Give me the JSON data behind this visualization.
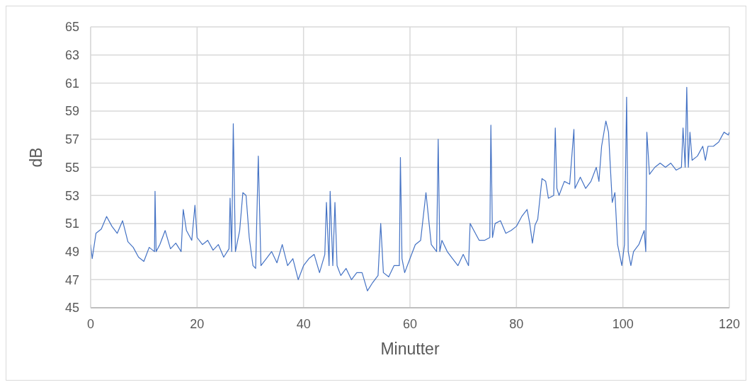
{
  "chart_data": {
    "type": "line",
    "xlabel": "Minutter",
    "ylabel": "dB",
    "x": [
      0,
      0.3,
      1,
      2,
      3,
      4,
      5,
      6,
      7,
      8,
      9,
      10,
      11,
      12,
      12.1,
      12.3,
      13,
      14,
      15,
      16,
      17,
      17.4,
      18,
      19,
      19.6,
      20,
      21,
      22,
      23,
      24,
      25,
      26,
      26.2,
      26.5,
      26.8,
      27.2,
      28,
      28.6,
      29.2,
      29.8,
      30.5,
      31,
      31.5,
      32,
      33,
      34,
      35,
      36,
      37,
      38,
      39,
      40,
      41,
      42,
      43,
      44,
      44.3,
      44.8,
      45,
      45.5,
      45.9,
      46.3,
      47,
      48,
      49,
      50,
      51,
      52,
      53,
      54,
      54.5,
      55,
      56,
      57,
      58,
      58.2,
      58.5,
      59,
      60,
      61,
      62,
      63,
      64,
      65,
      65.3,
      65.6,
      66,
      67,
      68,
      69,
      70,
      71,
      71.3,
      72,
      73,
      74,
      75,
      75.2,
      75.5,
      76,
      77,
      78,
      79,
      80,
      81,
      82,
      82.5,
      83,
      83.5,
      84,
      84.8,
      85.5,
      86,
      87,
      87.3,
      87.6,
      88,
      89,
      90,
      90.8,
      91,
      92,
      93,
      94,
      95,
      95.5,
      96,
      96.8,
      97.3,
      98,
      98.5,
      99,
      99.8,
      100.3,
      100.7,
      101,
      101.5,
      102,
      103,
      104,
      104.3,
      104.5,
      105,
      106,
      107,
      108,
      109,
      110,
      111,
      111.3,
      111.7,
      112,
      112.3,
      112.6,
      113,
      114,
      115,
      115.5,
      116,
      117,
      118,
      119,
      119.8,
      120
    ],
    "series": [
      {
        "color": "#4472c4",
        "values": [
          49.5,
          48.5,
          50.3,
          50.6,
          51.5,
          50.8,
          50.3,
          51.2,
          49.7,
          49.3,
          48.6,
          48.3,
          49.3,
          49.0,
          53.3,
          49.0,
          49.5,
          50.5,
          49.2,
          49.6,
          49.0,
          52.0,
          50.5,
          49.8,
          52.3,
          50.0,
          49.5,
          49.8,
          49.1,
          49.5,
          48.6,
          49.2,
          52.8,
          49.0,
          58.1,
          49.0,
          50.5,
          53.2,
          53.0,
          50.0,
          48.0,
          47.8,
          55.8,
          48.0,
          48.5,
          49.0,
          48.2,
          49.5,
          48.0,
          48.5,
          47.0,
          48.0,
          48.5,
          48.8,
          47.5,
          48.8,
          52.5,
          48.0,
          53.3,
          48.0,
          52.5,
          48.0,
          47.3,
          47.8,
          47.0,
          47.5,
          47.5,
          46.2,
          46.8,
          47.3,
          51.0,
          47.5,
          47.2,
          48.0,
          48.0,
          55.7,
          48.5,
          47.5,
          48.5,
          49.5,
          49.8,
          53.2,
          49.5,
          49.0,
          57.0,
          49.0,
          49.8,
          49.0,
          48.5,
          48.0,
          48.8,
          48.0,
          51.0,
          50.5,
          49.8,
          49.8,
          50.0,
          58.0,
          50.0,
          51.0,
          51.2,
          50.3,
          50.5,
          50.8,
          51.5,
          52.0,
          51.0,
          49.6,
          50.9,
          51.3,
          54.2,
          54.0,
          52.8,
          53.0,
          57.8,
          53.5,
          53.0,
          54.0,
          53.8,
          57.7,
          53.5,
          54.3,
          53.5,
          54.0,
          55.0,
          54.0,
          56.5,
          58.3,
          57.5,
          52.5,
          53.2,
          49.5,
          48.0,
          49.5,
          60.0,
          49.0,
          48.0,
          49.0,
          49.5,
          50.5,
          49.0,
          57.5,
          54.5,
          55.0,
          55.3,
          55.0,
          55.3,
          54.8,
          55.0,
          57.8,
          55.0,
          60.7,
          55.0,
          57.5,
          55.5,
          55.8,
          56.5,
          55.5,
          56.5,
          56.5,
          56.8,
          57.5,
          57.3,
          57.5
        ]
      }
    ],
    "xlim": [
      0,
      120
    ],
    "xticks": [
      0,
      20,
      40,
      60,
      80,
      100,
      120
    ],
    "ylim": [
      45,
      65
    ],
    "yticks": [
      45,
      47,
      49,
      51,
      53,
      55,
      57,
      59,
      61,
      63,
      65
    ],
    "grid": true,
    "marker": "none",
    "line_style": "solid"
  }
}
